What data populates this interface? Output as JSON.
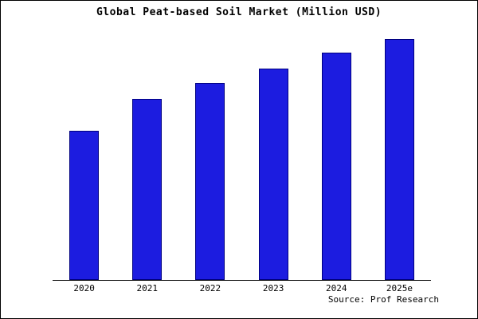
{
  "title": "Global Peat-based Soil Market (Million USD)",
  "source": "Source: Prof Research",
  "colors": {
    "bar_fill": "#1c1ce0",
    "bar_border": "#000080",
    "axis": "#000000",
    "background": "#ffffff"
  },
  "chart_data": {
    "type": "bar",
    "title": "Global Peat-based Soil Market (Million USD)",
    "categories": [
      "2020",
      "2021",
      "2022",
      "2023",
      "2024",
      "2025e"
    ],
    "values": [
      65,
      79,
      86,
      92,
      99,
      105
    ],
    "xlabel": "",
    "ylabel": "",
    "ylim": [
      0,
      105
    ],
    "grid": false,
    "legend": false,
    "y_axis_labels_shown": false
  }
}
